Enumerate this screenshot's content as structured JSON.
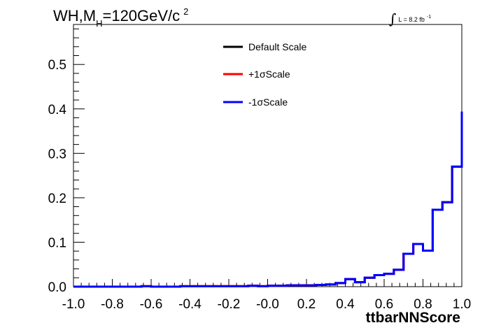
{
  "title": {
    "main": "WH,M",
    "subscript": "H",
    "rest": "=120GeV/c",
    "superscript": "2"
  },
  "lumi": {
    "integral_symbol": "∫",
    "text": "L = 8.2 fb",
    "superscript": "-1"
  },
  "chart_data": {
    "type": "line",
    "xlabel": "ttbarNNScore",
    "ylabel": "",
    "xlim": [
      -1.0,
      1.0
    ],
    "ylim": [
      0.0,
      0.59
    ],
    "x_ticks": [
      "-1.0",
      "-0.8",
      "-0.6",
      "-0.4",
      "-0.2",
      "-0.0",
      "0.2",
      "0.4",
      "0.6",
      "0.8",
      "1.0"
    ],
    "x_tick_values": [
      -1.0,
      -0.8,
      -0.6,
      -0.4,
      -0.2,
      0.0,
      0.2,
      0.4,
      0.6,
      0.8,
      1.0
    ],
    "y_ticks": [
      "0.0",
      "0.1",
      "0.2",
      "0.3",
      "0.4",
      "0.5"
    ],
    "y_tick_values": [
      0.0,
      0.1,
      0.2,
      0.3,
      0.4,
      0.5
    ],
    "bin_edges": [
      -1.0,
      -0.95,
      -0.9,
      -0.85,
      -0.8,
      -0.75,
      -0.7,
      -0.65,
      -0.6,
      -0.55,
      -0.5,
      -0.45,
      -0.4,
      -0.35,
      -0.3,
      -0.25,
      -0.2,
      -0.15,
      -0.1,
      -0.05,
      0.0,
      0.05,
      0.1,
      0.15,
      0.2,
      0.25,
      0.3,
      0.35,
      0.4,
      0.45,
      0.5,
      0.55,
      0.6,
      0.65,
      0.7,
      0.75,
      0.8,
      0.85,
      0.9,
      0.95,
      1.0
    ],
    "series": [
      {
        "name": "Default Scale",
        "color": "#000000",
        "values": [
          0.0,
          0.0,
          0.0,
          0.0,
          0.0,
          0.0,
          0.0,
          0.001,
          0.0,
          0.0,
          0.0,
          0.001,
          0.001,
          0.001,
          0.001,
          0.001,
          0.001,
          0.001,
          0.002,
          0.001,
          0.002,
          0.002,
          0.003,
          0.003,
          0.003,
          0.004,
          0.005,
          0.008,
          0.017,
          0.01,
          0.02,
          0.026,
          0.029,
          0.038,
          0.074,
          0.096,
          0.081,
          0.173,
          0.19,
          0.27,
          0.394
        ]
      },
      {
        "name": "+1σScale",
        "color": "#ff0000",
        "values": [
          0.0,
          0.0,
          0.0,
          0.0,
          0.0,
          0.0,
          0.0,
          0.001,
          0.0,
          0.0,
          0.0,
          0.001,
          0.001,
          0.001,
          0.001,
          0.001,
          0.001,
          0.001,
          0.002,
          0.001,
          0.002,
          0.002,
          0.003,
          0.003,
          0.003,
          0.004,
          0.005,
          0.008,
          0.017,
          0.01,
          0.02,
          0.026,
          0.029,
          0.038,
          0.074,
          0.096,
          0.081,
          0.173,
          0.19,
          0.27,
          0.394
        ]
      },
      {
        "name": "-1σScale",
        "color": "#0000ff",
        "values": [
          0.0,
          0.0,
          0.0,
          0.0,
          0.0,
          0.0,
          0.0,
          0.001,
          0.0,
          0.0,
          0.0,
          0.001,
          0.001,
          0.001,
          0.001,
          0.001,
          0.001,
          0.001,
          0.002,
          0.001,
          0.002,
          0.002,
          0.003,
          0.003,
          0.003,
          0.004,
          0.005,
          0.008,
          0.017,
          0.01,
          0.02,
          0.026,
          0.029,
          0.038,
          0.074,
          0.096,
          0.081,
          0.173,
          0.19,
          0.27,
          0.394
        ]
      }
    ],
    "legend_position": "top-center",
    "grid": false
  }
}
